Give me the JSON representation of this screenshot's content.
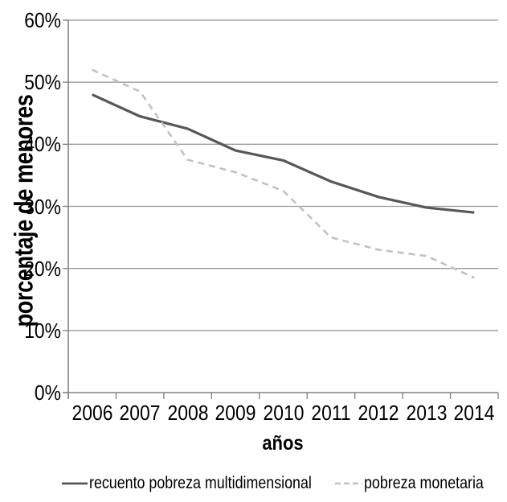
{
  "page": {
    "background": "#ffffff"
  },
  "chart_data": {
    "type": "line",
    "title": "",
    "xlabel": "años",
    "ylabel": "porcentaje de menores",
    "categories": [
      "2006",
      "2007",
      "2008",
      "2009",
      "2010",
      "2011",
      "2012",
      "2013",
      "2014"
    ],
    "series": [
      {
        "id": "recuento-pobreza-multidimensional",
        "name": "recuento pobreza multidimensional",
        "style": "solid",
        "color": "#575757",
        "values": [
          48,
          44.5,
          42.5,
          39,
          37.4,
          34,
          31.5,
          29.8,
          29
        ]
      },
      {
        "id": "pobreza-monetaria",
        "name": "pobreza monetaria",
        "style": "dashed",
        "color": "#c2c2c2",
        "values": [
          52,
          48.5,
          37.5,
          35.5,
          32.5,
          25,
          23,
          22,
          18.5
        ]
      }
    ],
    "ylim": [
      0,
      60
    ],
    "ytick_step": 10,
    "yticks": [
      "0%",
      "10%",
      "20%",
      "30%",
      "40%",
      "50%",
      "60%"
    ],
    "grid": "horizontal",
    "legend_position": "bottom"
  },
  "colors": {
    "grid": "#9b9b9b",
    "axis": "#808080",
    "text": "#000000"
  }
}
